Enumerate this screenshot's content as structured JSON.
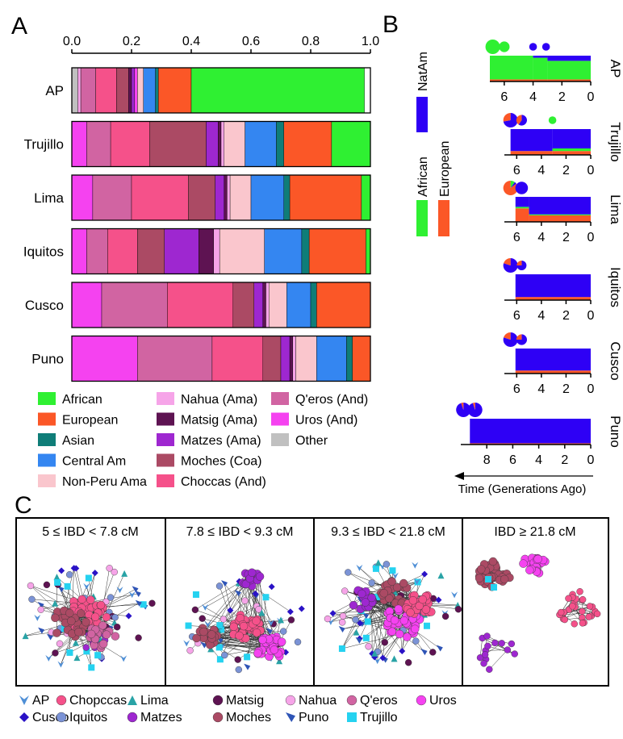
{
  "panels": {
    "a": "A",
    "b": "B",
    "c": "C"
  },
  "chart_data": [
    {
      "type": "bar",
      "orientation": "horizontal",
      "stacked": true,
      "xlim": [
        0,
        1
      ],
      "xticks": [
        "0.0",
        "0.2",
        "0.4",
        "0.6",
        "0.8",
        "1.0"
      ],
      "categories": [
        "AP",
        "Trujillo",
        "Lima",
        "Iquitos",
        "Cusco",
        "Puno"
      ],
      "components": [
        "Other",
        "Nahua (Ama)",
        "Q'eros (And)",
        "Choccas (And)",
        "Moches (Coa)",
        "Matzes (Ama)",
        "Matsig (Ama)",
        "Uros (And)",
        "Non-Peru Ama",
        "Central Am",
        "Asian",
        "European",
        "African"
      ],
      "colors": [
        "#c0c0c0",
        "#f6a4e8",
        "#d164a2",
        "#f5518a",
        "#ab4a64",
        "#9e27d0",
        "#5e1352",
        "#f542f0",
        "#fac6cd",
        "#3486f1",
        "#0f7d78",
        "#fb5727",
        "#2ff032"
      ],
      "legend": [
        [
          "African",
          "Nahua (Ama)",
          "Q'eros (And)"
        ],
        [
          "European",
          "Matsig (Ama)",
          "Uros (And)"
        ],
        [
          "Asian",
          "Matzes (Ama)",
          "Other"
        ],
        [
          "Central Am",
          "Moches (Coa)",
          ""
        ],
        [
          "Non-Peru Ama",
          "Choccas (And)",
          ""
        ]
      ],
      "bars": [
        {
          "name": "AP",
          "segments": [
            [
              "Other",
              0.02
            ],
            [
              "Nahua (Ama)",
              0.01
            ],
            [
              "Q'eros (And)",
              0.05
            ],
            [
              "Choccas (And)",
              0.07
            ],
            [
              "Moches (Coa)",
              0.04
            ],
            [
              "Matsig (Ama)",
              0.01
            ],
            [
              "Matzes (Ama)",
              0.01
            ],
            [
              "Uros (And)",
              0.01
            ],
            [
              "Non-Peru Ama",
              0.02
            ],
            [
              "Central Am",
              0.04
            ],
            [
              "Asian",
              0.01
            ],
            [
              "European",
              0.11
            ],
            [
              "African",
              0.58
            ]
          ]
        },
        {
          "name": "Trujillo",
          "segments": [
            [
              "Uros (And)",
              0.05
            ],
            [
              "Q'eros (And)",
              0.08
            ],
            [
              "Choccas (And)",
              0.13
            ],
            [
              "Moches (Coa)",
              0.19
            ],
            [
              "Matzes (Ama)",
              0.04
            ],
            [
              "Matsig (Ama)",
              0.01
            ],
            [
              "Nahua (Ama)",
              0.01
            ],
            [
              "Non-Peru Ama",
              0.07
            ],
            [
              "Central Am",
              0.105
            ],
            [
              "Asian",
              0.025
            ],
            [
              "European",
              0.16
            ],
            [
              "African",
              0.13
            ]
          ]
        },
        {
          "name": "Lima",
          "segments": [
            [
              "Uros (And)",
              0.07
            ],
            [
              "Q'eros (And)",
              0.13
            ],
            [
              "Choccas (And)",
              0.19
            ],
            [
              "Moches (Coa)",
              0.09
            ],
            [
              "Matzes (Ama)",
              0.03
            ],
            [
              "Matsig (Ama)",
              0.01
            ],
            [
              "Nahua (Ama)",
              0.01
            ],
            [
              "Non-Peru Ama",
              0.07
            ],
            [
              "Central Am",
              0.11
            ],
            [
              "Asian",
              0.02
            ],
            [
              "European",
              0.24
            ],
            [
              "African",
              0.03
            ]
          ]
        },
        {
          "name": "Iquitos",
          "segments": [
            [
              "Uros (And)",
              0.05
            ],
            [
              "Q'eros (And)",
              0.07
            ],
            [
              "Choccas (And)",
              0.1
            ],
            [
              "Moches (Coa)",
              0.09
            ],
            [
              "Matzes (Ama)",
              0.115
            ],
            [
              "Matsig (Ama)",
              0.05
            ],
            [
              "Nahua (Ama)",
              0.02
            ],
            [
              "Non-Peru Ama",
              0.15
            ],
            [
              "Central Am",
              0.125
            ],
            [
              "Asian",
              0.025
            ],
            [
              "European",
              0.19
            ],
            [
              "African",
              0.015
            ]
          ]
        },
        {
          "name": "Cusco",
          "segments": [
            [
              "Uros (And)",
              0.1
            ],
            [
              "Q'eros (And)",
              0.22
            ],
            [
              "Choccas (And)",
              0.22
            ],
            [
              "Moches (Coa)",
              0.07
            ],
            [
              "Matzes (Ama)",
              0.03
            ],
            [
              "Matsig (Ama)",
              0.01
            ],
            [
              "Nahua (Ama)",
              0.01
            ],
            [
              "Non-Peru Ama",
              0.06
            ],
            [
              "Central Am",
              0.08
            ],
            [
              "Asian",
              0.02
            ],
            [
              "European",
              0.18
            ]
          ]
        },
        {
          "name": "Puno",
          "segments": [
            [
              "Uros (And)",
              0.22
            ],
            [
              "Q'eros (And)",
              0.25
            ],
            [
              "Choccas (And)",
              0.17
            ],
            [
              "Moches (Coa)",
              0.06
            ],
            [
              "Matzes (Ama)",
              0.03
            ],
            [
              "Matsig (Ama)",
              0.01
            ],
            [
              "Nahua (Ama)",
              0.01
            ],
            [
              "Non-Peru Ama",
              0.07
            ],
            [
              "Central Am",
              0.1
            ],
            [
              "Asian",
              0.02
            ],
            [
              "European",
              0.06
            ]
          ]
        }
      ]
    },
    {
      "type": "area",
      "stacked": true,
      "xlabel": "Time (Generations Ago)",
      "x_reversed": true,
      "legend": [
        "African",
        "NatAm",
        "European"
      ],
      "colors": {
        "African": "#2ff032",
        "NatAm": "#2e00f5",
        "European": "#fb5727"
      },
      "populations": [
        {
          "name": "AP",
          "xlim": [
            7,
            0
          ],
          "xticks": [
            "6",
            "4",
            "2",
            "0"
          ],
          "pulses": [
            {
              "gen": 6.8,
              "size": 1.0,
              "props": {
                "African": 1.0
              }
            },
            {
              "gen": 6.0,
              "size": 0.6,
              "props": {
                "African": 1.0
              }
            },
            {
              "gen": 4.0,
              "size": 0.3,
              "props": {
                "NatAm": 1.0
              }
            },
            {
              "gen": 3.1,
              "size": 0.3,
              "props": {
                "NatAm": 1.0
              }
            }
          ],
          "history": [
            [
              7.0,
              0.92,
              0.0,
              0.08
            ],
            [
              4.0,
              0.84,
              0.08,
              0.08
            ],
            [
              3.0,
              0.72,
              0.2,
              0.08
            ],
            [
              0.0,
              0.72,
              0.2,
              0.08
            ]
          ]
        },
        {
          "name": "Trujillo",
          "xlim": [
            7,
            0
          ],
          "xticks": [
            "6",
            "4",
            "2",
            "0"
          ],
          "pulses": [
            {
              "gen": 6.5,
              "size": 1.0,
              "props": {
                "NatAm": 0.72,
                "European": 0.28
              }
            },
            {
              "gen": 5.6,
              "size": 0.6,
              "props": {
                "NatAm": 0.6,
                "European": 0.4
              }
            },
            {
              "gen": 3.1,
              "size": 0.3,
              "props": {
                "African": 1.0
              }
            }
          ],
          "history": [
            [
              6.5,
              0.0,
              0.85,
              0.15
            ],
            [
              3.1,
              0.1,
              0.75,
              0.15
            ],
            [
              0.0,
              0.1,
              0.75,
              0.15
            ]
          ]
        },
        {
          "name": "Lima",
          "xlim": [
            7,
            0
          ],
          "xticks": [
            "6",
            "4",
            "2",
            "0"
          ],
          "pulses": [
            {
              "gen": 6.5,
              "size": 1.0,
              "props": {
                "European": 0.85,
                "African": 0.1,
                "NatAm": 0.05
              }
            },
            {
              "gen": 5.6,
              "size": 0.8,
              "props": {
                "NatAm": 1.0
              }
            }
          ],
          "history": [
            [
              6.1,
              0.06,
              0.4,
              0.54
            ],
            [
              5.0,
              0.04,
              0.7,
              0.26
            ],
            [
              0.0,
              0.04,
              0.7,
              0.26
            ]
          ]
        },
        {
          "name": "Iquitos",
          "xlim": [
            7,
            0
          ],
          "xticks": [
            "6",
            "4",
            "2",
            "0"
          ],
          "pulses": [
            {
              "gen": 6.5,
              "size": 1.0,
              "props": {
                "NatAm": 0.8,
                "European": 0.2
              }
            },
            {
              "gen": 5.6,
              "size": 0.5,
              "props": {
                "NatAm": 0.75,
                "European": 0.25
              }
            }
          ],
          "history": [
            [
              6.1,
              0.0,
              0.88,
              0.12
            ],
            [
              0.0,
              0.0,
              0.88,
              0.12
            ]
          ]
        },
        {
          "name": "Cusco",
          "xlim": [
            7,
            0
          ],
          "xticks": [
            "6",
            "4",
            "2",
            "0"
          ],
          "pulses": [
            {
              "gen": 6.5,
              "size": 1.0,
              "props": {
                "NatAm": 0.8,
                "European": 0.2
              }
            },
            {
              "gen": 5.6,
              "size": 0.6,
              "props": {
                "NatAm": 0.75,
                "European": 0.25
              }
            }
          ],
          "history": [
            [
              6.1,
              0.0,
              0.88,
              0.12
            ],
            [
              0.0,
              0.0,
              0.88,
              0.12
            ]
          ]
        },
        {
          "name": "Puno",
          "xlim": [
            10,
            0
          ],
          "xticks": [
            "8",
            "6",
            "4",
            "2",
            "0"
          ],
          "pulses": [
            {
              "gen": 9.8,
              "size": 1.0,
              "props": {
                "NatAm": 0.95,
                "European": 0.05
              }
            },
            {
              "gen": 8.9,
              "size": 1.0,
              "props": {
                "NatAm": 0.95,
                "European": 0.05
              }
            }
          ],
          "history": [
            [
              9.3,
              0.0,
              0.95,
              0.05
            ],
            [
              0.0,
              0.0,
              0.95,
              0.05
            ]
          ]
        }
      ]
    },
    {
      "type": "network",
      "panels": [
        "5 ≤ IBD < 7.8 cM",
        "7.8 ≤ IBD < 9.3 cM",
        "9.3 ≤ IBD < 21.8 cM",
        "IBD ≥ 21.8 cM"
      ],
      "legend": [
        {
          "name": "AP",
          "shape": "chevron",
          "color": "#4f8fd6"
        },
        {
          "name": "Chopccas",
          "shape": "circle",
          "color": "#f5518a"
        },
        {
          "name": "Lima",
          "shape": "triangle",
          "color": "#29a3a6"
        },
        {
          "name": "Matsig",
          "shape": "circle",
          "color": "#5e1352"
        },
        {
          "name": "Nahua",
          "shape": "circle",
          "color": "#f6a4e8"
        },
        {
          "name": "Q'eros",
          "shape": "circle",
          "color": "#d164a2"
        },
        {
          "name": "Uros",
          "shape": "circle",
          "color": "#f542f0"
        },
        {
          "name": "Cusco",
          "shape": "diamond",
          "color": "#2a12c6"
        },
        {
          "name": "Iquitos",
          "shape": "circle",
          "color": "#7b93d6"
        },
        {
          "name": "Matzes",
          "shape": "circle",
          "color": "#9e27d0"
        },
        {
          "name": "Moches",
          "shape": "circle",
          "color": "#ab4a64"
        },
        {
          "name": "Puno",
          "shape": "flag",
          "color": "#2e54b6"
        },
        {
          "name": "Trujillo",
          "shape": "square",
          "color": "#25d2f0"
        }
      ]
    }
  ]
}
